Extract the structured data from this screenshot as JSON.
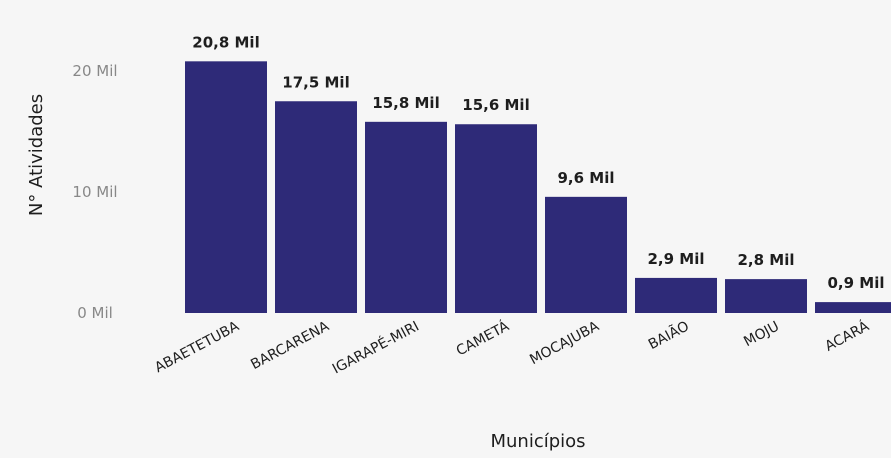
{
  "chart_data": {
    "type": "bar",
    "categories": [
      "ABAETETUBA",
      "BARCARENA",
      "IGARAPÉ-MIRI",
      "CAMETÁ",
      "MOCAJUBA",
      "BAIÃO",
      "MOJU",
      "ACARÁ"
    ],
    "values": [
      20.8,
      17.5,
      15.8,
      15.6,
      9.6,
      2.9,
      2.8,
      0.9
    ],
    "value_labels": [
      "20,8 Mil",
      "17,5 Mil",
      "15,8 Mil",
      "15,6 Mil",
      "9,6 Mil",
      "2,9 Mil",
      "2,8 Mil",
      "0,9 Mil"
    ],
    "unit": "Mil",
    "xlabel": "Municípios",
    "ylabel": "N° Atividades",
    "y_ticks": [
      {
        "value": 0,
        "label": "0 Mil"
      },
      {
        "value": 10,
        "label": "10 Mil"
      },
      {
        "value": 20,
        "label": "20 Mil"
      }
    ],
    "ylim": [
      0,
      24
    ],
    "bar_color": "#2e2a78",
    "grid": false
  }
}
